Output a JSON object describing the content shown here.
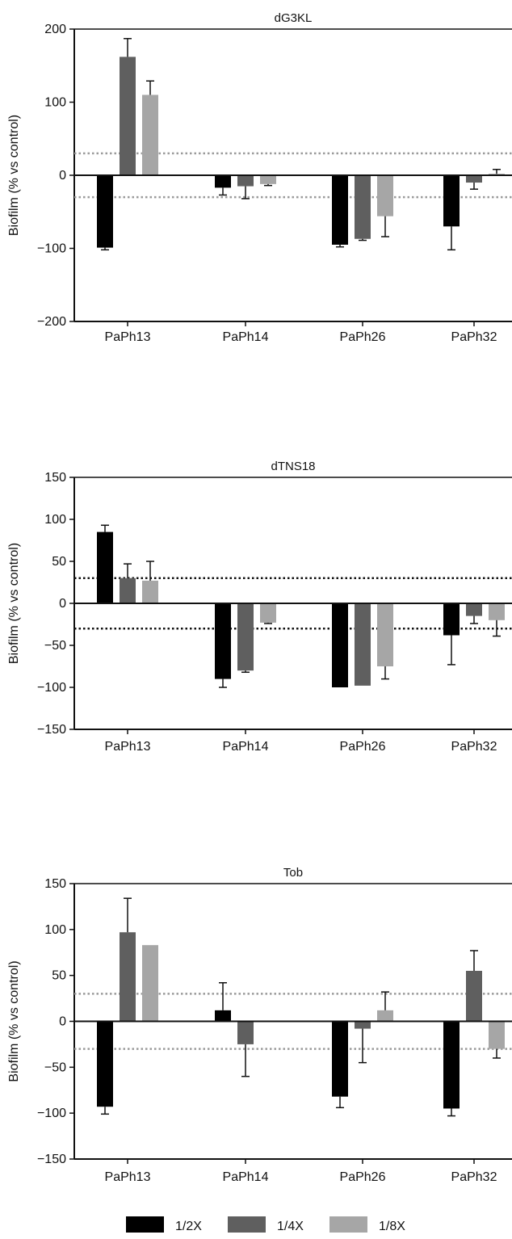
{
  "legend": [
    {
      "label": "1/2X",
      "color": "#000000"
    },
    {
      "label": "1/4X",
      "color": "#5f5f5f"
    },
    {
      "label": "1/8X",
      "color": "#a6a6a6"
    }
  ],
  "chart_data": [
    {
      "type": "bar",
      "title": "dG3KL",
      "ylabel": "Biofilm (% vs control)",
      "xlabel": "",
      "ylim": [
        -200,
        200
      ],
      "yticks": [
        200,
        100,
        0,
        -100,
        -200
      ],
      "ytick_labels": [
        "200",
        "100",
        "0",
        "−100",
        "−200"
      ],
      "threshold_lines": [
        30,
        -30
      ],
      "threshold_color": "#9a9a9a",
      "categories": [
        "PaPh13",
        "PaPh14",
        "PaPh26",
        "PaPh32"
      ],
      "series": [
        {
          "name": "1/2X",
          "color": "#000000",
          "values": [
            -99,
            -17,
            -95,
            -70
          ],
          "errors": [
            3,
            10,
            3,
            32
          ]
        },
        {
          "name": "1/4X",
          "color": "#5f5f5f",
          "values": [
            162,
            -15,
            -87,
            -10
          ],
          "errors": [
            25,
            17,
            2,
            9
          ]
        },
        {
          "name": "1/8X",
          "color": "#a6a6a6",
          "values": [
            110,
            -12,
            -56,
            2
          ],
          "errors": [
            19,
            2,
            28,
            6
          ]
        }
      ]
    },
    {
      "type": "bar",
      "title": "dTNS18",
      "ylabel": "Biofilm (% vs control)",
      "xlabel": "",
      "ylim": [
        -150,
        150
      ],
      "yticks": [
        150,
        100,
        50,
        0,
        -50,
        -100,
        -150
      ],
      "ytick_labels": [
        "150",
        "100",
        "50",
        "0",
        "−50",
        "−100",
        "−150"
      ],
      "threshold_lines": [
        30,
        -30
      ],
      "threshold_color": "#111111",
      "categories": [
        "PaPh13",
        "PaPh14",
        "PaPh26",
        "PaPh32"
      ],
      "series": [
        {
          "name": "1/2X",
          "color": "#000000",
          "values": [
            85,
            -90,
            -100,
            -38
          ],
          "errors": [
            8,
            10,
            0,
            35
          ]
        },
        {
          "name": "1/4X",
          "color": "#5f5f5f",
          "values": [
            30,
            -80,
            -98,
            -15
          ],
          "errors": [
            17,
            2,
            0,
            9
          ]
        },
        {
          "name": "1/8X",
          "color": "#a6a6a6",
          "values": [
            27,
            -23,
            -75,
            -20
          ],
          "errors": [
            23,
            1,
            15,
            19
          ]
        }
      ]
    },
    {
      "type": "bar",
      "title": "Tob",
      "ylabel": "Biofilm (% vs control)",
      "xlabel": "",
      "ylim": [
        -150,
        150
      ],
      "yticks": [
        150,
        100,
        50,
        0,
        -50,
        -100,
        -150
      ],
      "ytick_labels": [
        "150",
        "100",
        "50",
        "0",
        "−50",
        "−100",
        "−150"
      ],
      "threshold_lines": [
        30,
        -30
      ],
      "threshold_color": "#9a9a9a",
      "categories": [
        "PaPh13",
        "PaPh14",
        "PaPh26",
        "PaPh32"
      ],
      "series": [
        {
          "name": "1/2X",
          "color": "#000000",
          "values": [
            -93,
            12,
            -82,
            -95
          ],
          "errors": [
            8,
            30,
            12,
            8
          ]
        },
        {
          "name": "1/4X",
          "color": "#5f5f5f",
          "values": [
            97,
            -25,
            -8,
            55
          ],
          "errors": [
            37,
            35,
            37,
            22
          ]
        },
        {
          "name": "1/8X",
          "color": "#a6a6a6",
          "values": [
            83,
            0,
            12,
            -30
          ],
          "errors": [
            0,
            0,
            20,
            10
          ]
        }
      ]
    }
  ]
}
